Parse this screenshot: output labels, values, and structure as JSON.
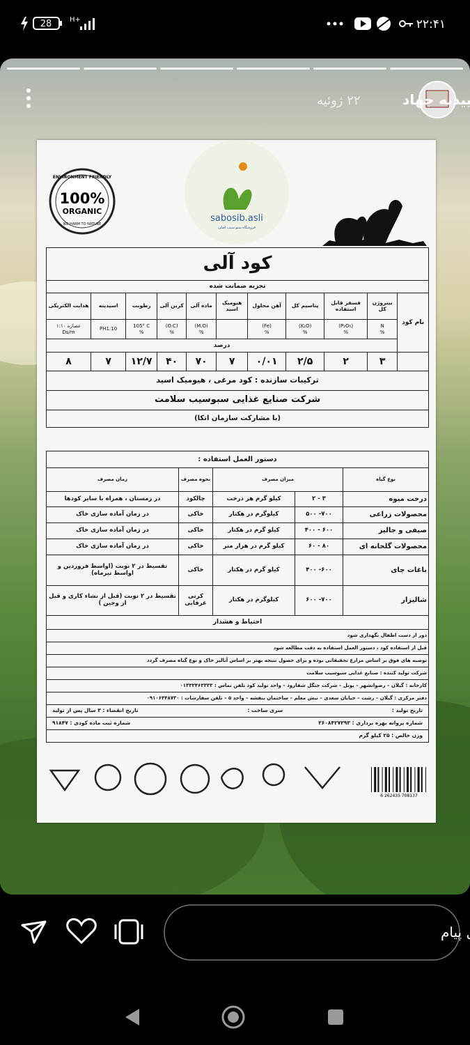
{
  "status_bar": {
    "time": "۲۲:۴۱",
    "battery": "28",
    "network": "H+"
  },
  "story": {
    "username": "تاییدیه جهاد",
    "date": "۲۲ ژوئیه"
  },
  "label": {
    "brand": "sabosib.asli",
    "brand_subtitle": "فروشگاه سبو سیب اصلی",
    "badge": {
      "top": "ENVIRONMENT FRIENDLY",
      "main": "100%",
      "sub": "ORGANIC",
      "bottom": "NO HARM TO NATURE"
    },
    "title": "کود آلی",
    "subtitle": "تجزیه ضمانت شده",
    "analysis": {
      "name_header": "نام کود",
      "unit_row": "درصد",
      "columns": [
        {
          "name": "نیتروژن کل",
          "unit": [
            "N",
            "%"
          ],
          "value": "۳"
        },
        {
          "name": "فسفر قابل استفاده",
          "unit": [
            "(P₂O₅)",
            "%"
          ],
          "value": "۲"
        },
        {
          "name": "پتاسیم کل",
          "unit": [
            "(K₂O)",
            "%"
          ],
          "value": "۲/۵"
        },
        {
          "name": "آهن محلول",
          "unit": [
            "(Fe)",
            "%"
          ],
          "value": "۰/۰۱"
        },
        {
          "name": "هیومیک اسید",
          "unit": [],
          "value": "۷"
        },
        {
          "name": "ماده آلی",
          "unit": [
            "(M.O)",
            "%"
          ],
          "value": "۷۰"
        },
        {
          "name": "کربن آلی",
          "unit": [
            "(O.C)",
            "%"
          ],
          "value": "۴۰"
        },
        {
          "name": "رطوبت",
          "unit": [
            "105° C",
            "%"
          ],
          "value": "۱۲/۷"
        },
        {
          "name": "اسیدیته",
          "unit": [
            "PH1:10"
          ],
          "value": "۷"
        },
        {
          "name": "هدایت الکتریکی",
          "unit": [
            "عصاره ۱:۱۰",
            "Ds/m"
          ],
          "value": "۸"
        }
      ]
    },
    "ingredients": "ترکیبات سازنده : کود مرغی ، هیومیک اسید",
    "company": "شرکت صنایع غذایی سبوسیب سلامت",
    "partner": "(با مشارکت سازمان اتکا)",
    "instructions": {
      "title": "دستور العمل استفاده :",
      "headers": [
        "نوع گیاه",
        "میزان مصرف",
        "نحوه مصرف",
        "زمان مصرف"
      ],
      "rows": [
        [
          "درخت میوه",
          "۳ - ۲",
          "کیلو گرم هر درخت",
          "چالکود",
          "در زمستان ، همراه با سایر کودها"
        ],
        [
          "محصولات زراعی",
          "۷۰۰- ۵۰۰",
          "کیلوگرم در هکتار",
          "خاکی",
          "در زمان آماده سازی خاک"
        ],
        [
          "صیفی و جالیز",
          "۶۰۰ - ۴۰۰",
          "کیلو گرم در هکتار",
          "خاکی",
          "در زمان آماده سازی خاک"
        ],
        [
          "محصولات گلخانه ای",
          "۸۰ - ۶۰",
          "کیلو گرم در هزار متر",
          "خاکی",
          "در زمان آماده سازی خاک"
        ],
        [
          "باغات چای",
          "۶۰۰- ۴۰۰",
          "کیلو گرم در هکتار",
          "خاکی",
          "تقسیط در ۲ نوبت (اواسط فروردین و اواسط تیرماه)"
        ],
        [
          "شالیزار",
          "۷۰۰- ۶۰۰",
          "کیلوگرم در هکتار",
          "کرتی غرقابی",
          "تقسیط در ۲ نوبت (قبل از نشاء کاری و قبل از وجین )"
        ]
      ]
    },
    "warnings": {
      "title": "احتیاط و هشدار",
      "lines": [
        "دور از دست اطفال نگهداری شود",
        "قبل از استفاده کود ، دستور العمل استفاده به دقت مطالعه شود",
        "توصیه های فوق بر اساس مزارع تحقیقاتی بوده و برای حصول نتیجه بهتر بر اساس آنالیز خاک و نوع گیاه مصرف گردد",
        "شرکت تولید کننده : صنایع غذایی سبوسیب سلامت",
        "کارخانه : گیلان – رضوانشهر – پونل – شرکت جنگل شفارود – واحد تولید کود   تلفن تماس : ۰۱۳۳۳۴۶۳۳۳۳",
        "دفتر مرکزی : گیلان – رشت – خیابان سعدی – نبش معلم – ساختمان بنفشه – واحد ۵ – تلفن سفارشات : ۰۹۱۰۶۴۴۸۷۳۰"
      ],
      "info_rows": [
        [
          "تاریخ تولید :",
          "سری ساخت :",
          "تاریخ انقضاء : ۳ سال پس از تولید"
        ],
        [
          "شماره پروانه بهره برداری : ۲۶۰۸۴۲۷۲۹۳",
          "شماره ثبت ماده کودی : ۹۱۸۴۷"
        ],
        [
          "وزن خالص : ۲۵ کیلو گرم"
        ]
      ]
    },
    "barcode": "6 262435 708137"
  },
  "bottom_bar": {
    "message_placeholder": "ارسال پیام"
  }
}
